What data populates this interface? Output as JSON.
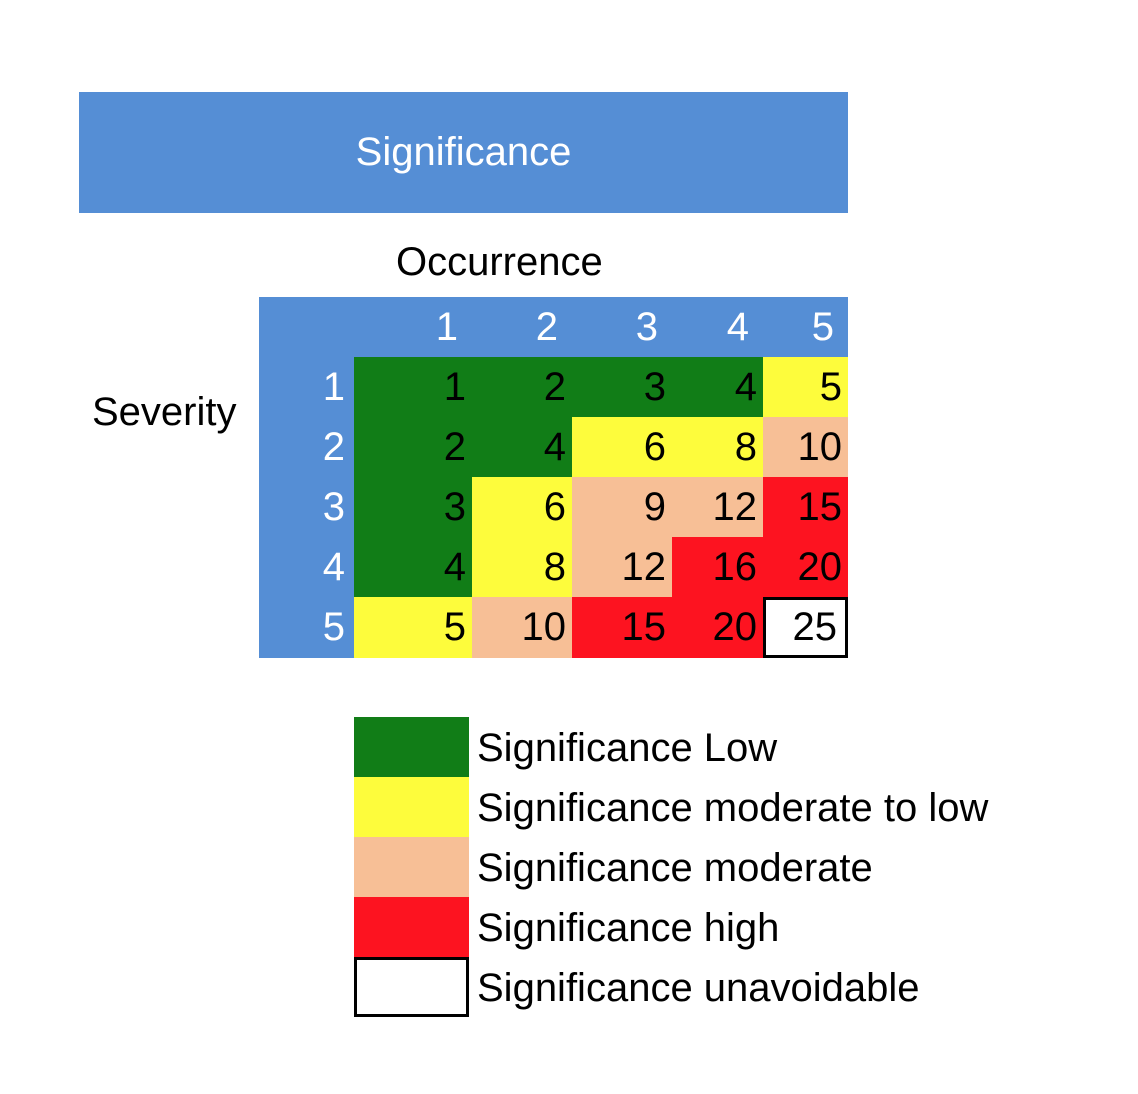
{
  "title": "Significance",
  "column_axis_label": "Occurrence",
  "row_axis_label": "Severity",
  "columns": [
    "1",
    "2",
    "3",
    "4",
    "5"
  ],
  "rows": [
    "1",
    "2",
    "3",
    "4",
    "5"
  ],
  "colors": {
    "header": "#558ed5",
    "low": "#117d17",
    "moderate_to_low": "#fdfc3c",
    "moderate": "#f7bf96",
    "high": "#fd1320",
    "unavoidable": "#ffffff"
  },
  "matrix": [
    [
      {
        "v": "1",
        "c": "low"
      },
      {
        "v": "2",
        "c": "low"
      },
      {
        "v": "3",
        "c": "low"
      },
      {
        "v": "4",
        "c": "low"
      },
      {
        "v": "5",
        "c": "moderate_to_low"
      }
    ],
    [
      {
        "v": "2",
        "c": "low"
      },
      {
        "v": "4",
        "c": "low"
      },
      {
        "v": "6",
        "c": "moderate_to_low"
      },
      {
        "v": "8",
        "c": "moderate_to_low"
      },
      {
        "v": "10",
        "c": "moderate"
      }
    ],
    [
      {
        "v": "3",
        "c": "low"
      },
      {
        "v": "6",
        "c": "moderate_to_low"
      },
      {
        "v": "9",
        "c": "moderate"
      },
      {
        "v": "12",
        "c": "moderate"
      },
      {
        "v": "15",
        "c": "high"
      }
    ],
    [
      {
        "v": "4",
        "c": "low"
      },
      {
        "v": "8",
        "c": "moderate_to_low"
      },
      {
        "v": "12",
        "c": "moderate"
      },
      {
        "v": "16",
        "c": "high"
      },
      {
        "v": "20",
        "c": "high"
      }
    ],
    [
      {
        "v": "5",
        "c": "moderate_to_low"
      },
      {
        "v": "10",
        "c": "moderate"
      },
      {
        "v": "15",
        "c": "high"
      },
      {
        "v": "20",
        "c": "high"
      },
      {
        "v": "25",
        "c": "unavoidable"
      }
    ]
  ],
  "legend": [
    {
      "key": "low",
      "label": "Significance Low"
    },
    {
      "key": "moderate_to_low",
      "label": "Significance moderate to low"
    },
    {
      "key": "moderate",
      "label": "Significance moderate"
    },
    {
      "key": "high",
      "label": "Significance high"
    },
    {
      "key": "unavoidable",
      "label": "Significance unavoidable"
    }
  ]
}
